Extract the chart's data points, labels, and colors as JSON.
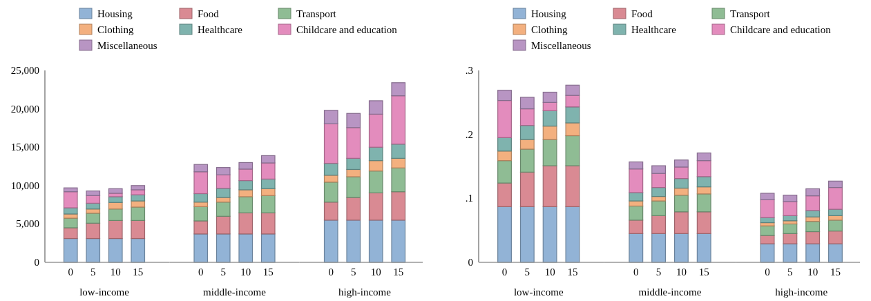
{
  "chart_data": [
    {
      "type": "bar",
      "stacked": true,
      "legend": "top",
      "grid": false,
      "categories": [
        "0",
        "5",
        "10",
        "15"
      ],
      "xlabel": "low-income",
      "ylim": [
        0,
        25000
      ],
      "yticks": [
        0,
        {
          "value": 5000,
          "label": "5,000"
        },
        {
          "value": 10000,
          "label": "10,000"
        },
        {
          "value": 15000,
          "label": "15,000"
        },
        {
          "value": 20000,
          "label": "20,000"
        },
        {
          "value": 25000,
          "label": "25,000"
        }
      ],
      "series": [
        {
          "name": "Housing",
          "color": "#92b3d6",
          "values": [
            3100,
            3100,
            3100,
            3100
          ]
        },
        {
          "name": "Food",
          "color": "#d98a93",
          "values": [
            1400,
            2000,
            2350,
            2350
          ]
        },
        {
          "name": "Transport",
          "color": "#8fbc94",
          "values": [
            1250,
            1300,
            1500,
            1750
          ]
        },
        {
          "name": "Clothing",
          "color": "#f3b07f",
          "values": [
            550,
            550,
            850,
            800
          ]
        },
        {
          "name": "Healthcare",
          "color": "#7fb3ae",
          "values": [
            800,
            750,
            750,
            800
          ]
        },
        {
          "name": "Childcare and education",
          "color": "#e38cbd",
          "values": [
            2100,
            1000,
            450,
            650
          ]
        },
        {
          "name": "Miscellaneous",
          "color": "#b895c3",
          "values": [
            500,
            600,
            600,
            550
          ]
        }
      ]
    },
    {
      "type": "bar",
      "stacked": true,
      "grid": false,
      "tick_labels": "x",
      "categories": [
        "0",
        "5",
        "10",
        "15"
      ],
      "xlabel": "middle-income",
      "ylim": [
        0,
        25000
      ],
      "series": [
        {
          "color": "#92b3d6",
          "values": [
            3700,
            3700,
            3700,
            3700
          ]
        },
        {
          "color": "#d98a93",
          "values": [
            1700,
            2300,
            2750,
            2750
          ]
        },
        {
          "color": "#8fbc94",
          "values": [
            1850,
            1850,
            2100,
            2250
          ]
        },
        {
          "color": "#f3b07f",
          "values": [
            600,
            600,
            900,
            900
          ]
        },
        {
          "color": "#7fb3ae",
          "values": [
            1100,
            1200,
            1200,
            1250
          ]
        },
        {
          "color": "#e38cbd",
          "values": [
            2850,
            1750,
            1500,
            2100
          ]
        },
        {
          "color": "#b895c3",
          "values": [
            950,
            950,
            850,
            950
          ]
        }
      ]
    },
    {
      "type": "bar",
      "stacked": true,
      "grid": false,
      "tick_labels": "x",
      "categories": [
        "0",
        "5",
        "10",
        "15"
      ],
      "xlabel": "high-income",
      "ylim": [
        0,
        25000
      ],
      "series": [
        {
          "color": "#92b3d6",
          "values": [
            5500,
            5500,
            5500,
            5500
          ]
        },
        {
          "color": "#d98a93",
          "values": [
            2350,
            2950,
            3550,
            3700
          ]
        },
        {
          "color": "#8fbc94",
          "values": [
            2600,
            2700,
            2850,
            3100
          ]
        },
        {
          "color": "#f3b07f",
          "values": [
            900,
            950,
            1350,
            1250
          ]
        },
        {
          "color": "#7fb3ae",
          "values": [
            1550,
            1450,
            1750,
            1850
          ]
        },
        {
          "color": "#e38cbd",
          "values": [
            5150,
            4000,
            4300,
            6300
          ]
        },
        {
          "color": "#b895c3",
          "values": [
            1750,
            1850,
            1750,
            1700
          ]
        }
      ]
    },
    {
      "type": "bar",
      "stacked": true,
      "legend": "top",
      "grid": false,
      "categories": [
        "0",
        "5",
        "10",
        "15"
      ],
      "xlabel": "low-income",
      "ylim": [
        0,
        0.3
      ],
      "yticks": [
        0,
        {
          "value": 0.1,
          "label": ".1"
        },
        {
          "value": 0.2,
          "label": ".2"
        },
        {
          "value": 0.3,
          "label": ".3"
        }
      ],
      "series": [
        {
          "name": "Housing",
          "color": "#92b3d6",
          "values": [
            0.087,
            0.087,
            0.087,
            0.087
          ]
        },
        {
          "name": "Food",
          "color": "#d98a93",
          "values": [
            0.037,
            0.054,
            0.064,
            0.064
          ]
        },
        {
          "name": "Transport",
          "color": "#8fbc94",
          "values": [
            0.035,
            0.036,
            0.041,
            0.047
          ]
        },
        {
          "name": "Clothing",
          "color": "#f3b07f",
          "values": [
            0.015,
            0.015,
            0.021,
            0.02
          ]
        },
        {
          "name": "Healthcare",
          "color": "#7fb3ae",
          "values": [
            0.021,
            0.022,
            0.024,
            0.025
          ]
        },
        {
          "name": "Childcare and education",
          "color": "#e38cbd",
          "values": [
            0.058,
            0.026,
            0.013,
            0.018
          ]
        },
        {
          "name": "Miscellaneous",
          "color": "#b895c3",
          "values": [
            0.016,
            0.018,
            0.016,
            0.016
          ]
        }
      ]
    },
    {
      "type": "bar",
      "stacked": true,
      "grid": false,
      "tick_labels": "x",
      "categories": [
        "0",
        "5",
        "10",
        "15"
      ],
      "xlabel": "middle-income",
      "ylim": [
        0,
        0.3
      ],
      "series": [
        {
          "color": "#92b3d6",
          "values": [
            0.045,
            0.045,
            0.045,
            0.045
          ]
        },
        {
          "color": "#d98a93",
          "values": [
            0.021,
            0.028,
            0.034,
            0.034
          ]
        },
        {
          "color": "#8fbc94",
          "values": [
            0.022,
            0.023,
            0.026,
            0.028
          ]
        },
        {
          "color": "#f3b07f",
          "values": [
            0.008,
            0.007,
            0.011,
            0.011
          ]
        },
        {
          "color": "#7fb3ae",
          "values": [
            0.013,
            0.014,
            0.015,
            0.016
          ]
        },
        {
          "color": "#e38cbd",
          "values": [
            0.037,
            0.022,
            0.018,
            0.025
          ]
        },
        {
          "color": "#b895c3",
          "values": [
            0.011,
            0.012,
            0.011,
            0.012
          ]
        }
      ]
    },
    {
      "type": "bar",
      "stacked": true,
      "grid": false,
      "tick_labels": "x",
      "categories": [
        "0",
        "5",
        "10",
        "15"
      ],
      "xlabel": "high-income",
      "ylim": [
        0,
        0.3
      ],
      "series": [
        {
          "color": "#92b3d6",
          "values": [
            0.029,
            0.029,
            0.029,
            0.029
          ]
        },
        {
          "color": "#d98a93",
          "values": [
            0.013,
            0.016,
            0.019,
            0.02
          ]
        },
        {
          "color": "#8fbc94",
          "values": [
            0.015,
            0.015,
            0.016,
            0.017
          ]
        },
        {
          "color": "#f3b07f",
          "values": [
            0.005,
            0.005,
            0.007,
            0.007
          ]
        },
        {
          "color": "#7fb3ae",
          "values": [
            0.008,
            0.008,
            0.01,
            0.01
          ]
        },
        {
          "color": "#e38cbd",
          "values": [
            0.028,
            0.022,
            0.023,
            0.034
          ]
        },
        {
          "color": "#b895c3",
          "values": [
            0.01,
            0.01,
            0.011,
            0.01
          ]
        }
      ]
    }
  ]
}
